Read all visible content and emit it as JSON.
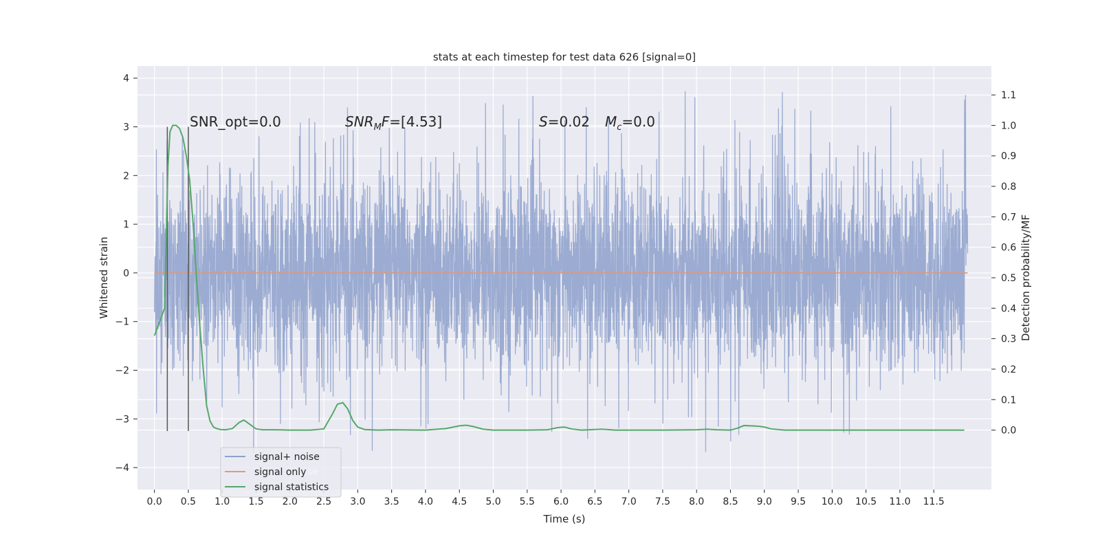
{
  "chart_data": {
    "type": "line",
    "title": "stats at each timestep for test data 626 [signal=0]",
    "xlabel": "Time (s)",
    "ylabel_left": "Whitened strain",
    "ylabel_right": "Detection probability/MF",
    "xlim": [
      -0.25,
      12.35
    ],
    "ylim_left": [
      -4.45,
      4.25
    ],
    "ylim_right": [
      -0.195,
      1.195
    ],
    "x_ticks": [
      0.0,
      0.5,
      1.0,
      1.5,
      2.0,
      2.5,
      3.0,
      3.5,
      4.0,
      4.5,
      5.0,
      5.5,
      6.0,
      6.5,
      7.0,
      7.5,
      8.0,
      8.5,
      9.0,
      9.5,
      10.0,
      10.5,
      11.0,
      11.5
    ],
    "x_tick_labels": [
      "0.0",
      "0.5",
      "1.0",
      "1.5",
      "2.0",
      "2.5",
      "3.0",
      "3.5",
      "4.0",
      "4.5",
      "5.0",
      "5.5",
      "6.0",
      "6.5",
      "7.0",
      "7.5",
      "8.0",
      "8.5",
      "9.0",
      "9.5",
      "10.0",
      "10.5",
      "11.0",
      "11.5"
    ],
    "y_left_ticks": [
      4,
      3,
      2,
      1,
      0,
      -1,
      -2,
      -3,
      -4
    ],
    "y_left_tick_labels": [
      "4",
      "3",
      "2",
      "1",
      "0",
      "−1",
      "−2",
      "−3",
      "−4"
    ],
    "y_right_ticks": [
      1.1,
      1.0,
      0.9,
      0.8,
      0.7,
      0.6,
      0.5,
      0.4,
      0.3,
      0.2,
      0.1,
      0.0
    ],
    "y_right_tick_labels": [
      "1.1",
      "1.0",
      "0.9",
      "0.8",
      "0.7",
      "0.6",
      "0.5",
      "0.4",
      "0.3",
      "0.2",
      "0.1",
      "0.0"
    ],
    "grid": true,
    "legend_position": "lower-left",
    "legend": [
      {
        "label": "signal+ noise",
        "color": "#8da0cb"
      },
      {
        "label": "signal only",
        "color": "#dd9a7e"
      },
      {
        "label": "signal statistics",
        "color": "#55a868"
      }
    ],
    "legend_ghost_text": "ise",
    "annotations": {
      "snr_opt": "SNR_opt=0.0",
      "snr_mf_main": "SNR",
      "snr_mf_sub": "M",
      "snr_mf_rest": "F=[4.53]",
      "s_label": "S",
      "s_value": "=0.02",
      "mc_main": "M",
      "mc_sub": "c",
      "mc_value": "=0.0"
    },
    "vertical_markers": [
      0.19,
      0.5
    ],
    "signal_noise": {
      "t_start": 0.0,
      "t_end": 12.0,
      "typical_envelope": [
        -1.8,
        1.8
      ],
      "extreme_range": [
        -4.1,
        3.85
      ],
      "description_color": "#8da0cb"
    },
    "signal_only": {
      "x": [
        0.0,
        12.0
      ],
      "y": [
        0.0,
        0.0
      ]
    },
    "signal_statistics": {
      "x": [
        0.0,
        0.1,
        0.15,
        0.17,
        0.2,
        0.23,
        0.27,
        0.32,
        0.37,
        0.42,
        0.47,
        0.52,
        0.57,
        0.62,
        0.67,
        0.72,
        0.77,
        0.82,
        0.87,
        0.92,
        0.97,
        1.05,
        1.15,
        1.25,
        1.32,
        1.4,
        1.5,
        1.6,
        1.8,
        2.0,
        2.3,
        2.5,
        2.62,
        2.7,
        2.78,
        2.85,
        2.93,
        3.0,
        3.1,
        3.3,
        3.5,
        4.0,
        4.3,
        4.5,
        4.6,
        4.7,
        4.85,
        5.0,
        5.5,
        5.8,
        5.95,
        6.05,
        6.15,
        6.3,
        6.6,
        6.8,
        7.0,
        7.5,
        8.0,
        8.15,
        8.3,
        8.5,
        8.6,
        8.7,
        8.9,
        9.0,
        9.1,
        9.3,
        9.5,
        10.0,
        10.5,
        11.0,
        11.5,
        11.95
      ],
      "y": [
        0.31,
        0.37,
        0.4,
        0.6,
        0.87,
        0.98,
        1.0,
        1.0,
        0.99,
        0.96,
        0.9,
        0.82,
        0.68,
        0.5,
        0.34,
        0.2,
        0.08,
        0.03,
        0.01,
        0.005,
        0.002,
        0.001,
        0.005,
        0.025,
        0.033,
        0.02,
        0.004,
        0.001,
        0.001,
        0.0,
        0.0,
        0.004,
        0.05,
        0.085,
        0.09,
        0.07,
        0.03,
        0.01,
        0.002,
        0.0,
        0.001,
        0.0,
        0.005,
        0.014,
        0.016,
        0.012,
        0.003,
        0.0,
        0.0,
        0.001,
        0.008,
        0.01,
        0.004,
        0.0,
        0.003,
        0.0,
        0.0,
        0.0,
        0.001,
        0.003,
        0.001,
        0.0,
        0.006,
        0.015,
        0.013,
        0.01,
        0.004,
        0.0,
        0.0,
        0.0,
        0.0,
        0.0,
        0.0,
        0.0
      ]
    }
  }
}
